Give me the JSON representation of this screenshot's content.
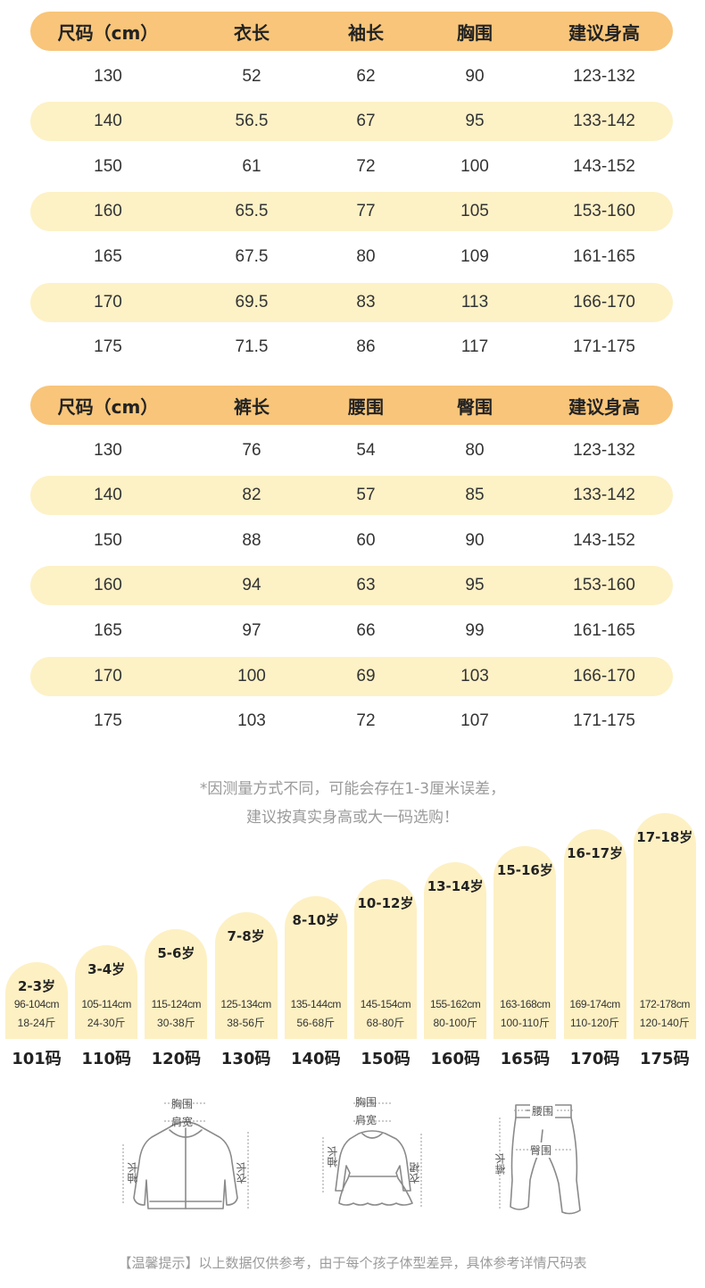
{
  "top_table": {
    "headers": [
      "尺码（cm）",
      "衣长",
      "袖长",
      "胸围",
      "建议身高"
    ],
    "rows": [
      [
        "130",
        "52",
        "62",
        "90",
        "123-132"
      ],
      [
        "140",
        "56.5",
        "67",
        "95",
        "133-142"
      ],
      [
        "150",
        "61",
        "72",
        "100",
        "143-152"
      ],
      [
        "160",
        "65.5",
        "77",
        "105",
        "153-160"
      ],
      [
        "165",
        "67.5",
        "80",
        "109",
        "161-165"
      ],
      [
        "170",
        "69.5",
        "83",
        "113",
        "166-170"
      ],
      [
        "175",
        "71.5",
        "86",
        "117",
        "171-175"
      ]
    ]
  },
  "bottom_table": {
    "headers": [
      "尺码（cm）",
      "裤长",
      "腰围",
      "臀围",
      "建议身高"
    ],
    "rows": [
      [
        "130",
        "76",
        "54",
        "80",
        "123-132"
      ],
      [
        "140",
        "82",
        "57",
        "85",
        "133-142"
      ],
      [
        "150",
        "88",
        "60",
        "90",
        "143-152"
      ],
      [
        "160",
        "94",
        "63",
        "95",
        "153-160"
      ],
      [
        "165",
        "97",
        "66",
        "99",
        "161-165"
      ],
      [
        "170",
        "100",
        "69",
        "103",
        "166-170"
      ],
      [
        "175",
        "103",
        "72",
        "107",
        "171-175"
      ]
    ]
  },
  "note": {
    "line1": "*因测量方式不同，可能会存在1-3厘米误差，",
    "line2": "建议按真实身高或大一码选购！"
  },
  "age_bars": [
    {
      "age": "2-3岁",
      "height": "96-104cm",
      "weight": "18-24斤",
      "code": "101码"
    },
    {
      "age": "3-4岁",
      "height": "105-114cm",
      "weight": "24-30斤",
      "code": "110码"
    },
    {
      "age": "5-6岁",
      "height": "115-124cm",
      "weight": "30-38斤",
      "code": "120码"
    },
    {
      "age": "7-8岁",
      "height": "125-134cm",
      "weight": "38-56斤",
      "code": "130码"
    },
    {
      "age": "8-10岁",
      "height": "135-144cm",
      "weight": "56-68斤",
      "code": "140码"
    },
    {
      "age": "10-12岁",
      "height": "145-154cm",
      "weight": "68-80斤",
      "code": "150码"
    },
    {
      "age": "13-14岁",
      "height": "155-162cm",
      "weight": "80-100斤",
      "code": "160码"
    },
    {
      "age": "15-16岁",
      "height": "163-168cm",
      "weight": "100-110斤",
      "code": "165码"
    },
    {
      "age": "16-17岁",
      "height": "169-174cm",
      "weight": "110-120斤",
      "code": "170码"
    },
    {
      "age": "17-18岁",
      "height": "172-178cm",
      "weight": "120-140斤",
      "code": "175码"
    }
  ],
  "diagrams": {
    "jacket": {
      "chest": "胸围",
      "shoulder": "肩宽",
      "sleeve": "袖长",
      "length": "衣长"
    },
    "dress": {
      "chest": "胸围",
      "shoulder": "肩宽",
      "sleeve": "袖长",
      "length": "衣裙"
    },
    "pants": {
      "waist": "腰围",
      "hip": "臀围",
      "length": "裤长"
    }
  },
  "footer": "【温馨提示】以上数据仅供参考，由于每个孩子体型差异，具体参考详情尺码表"
}
